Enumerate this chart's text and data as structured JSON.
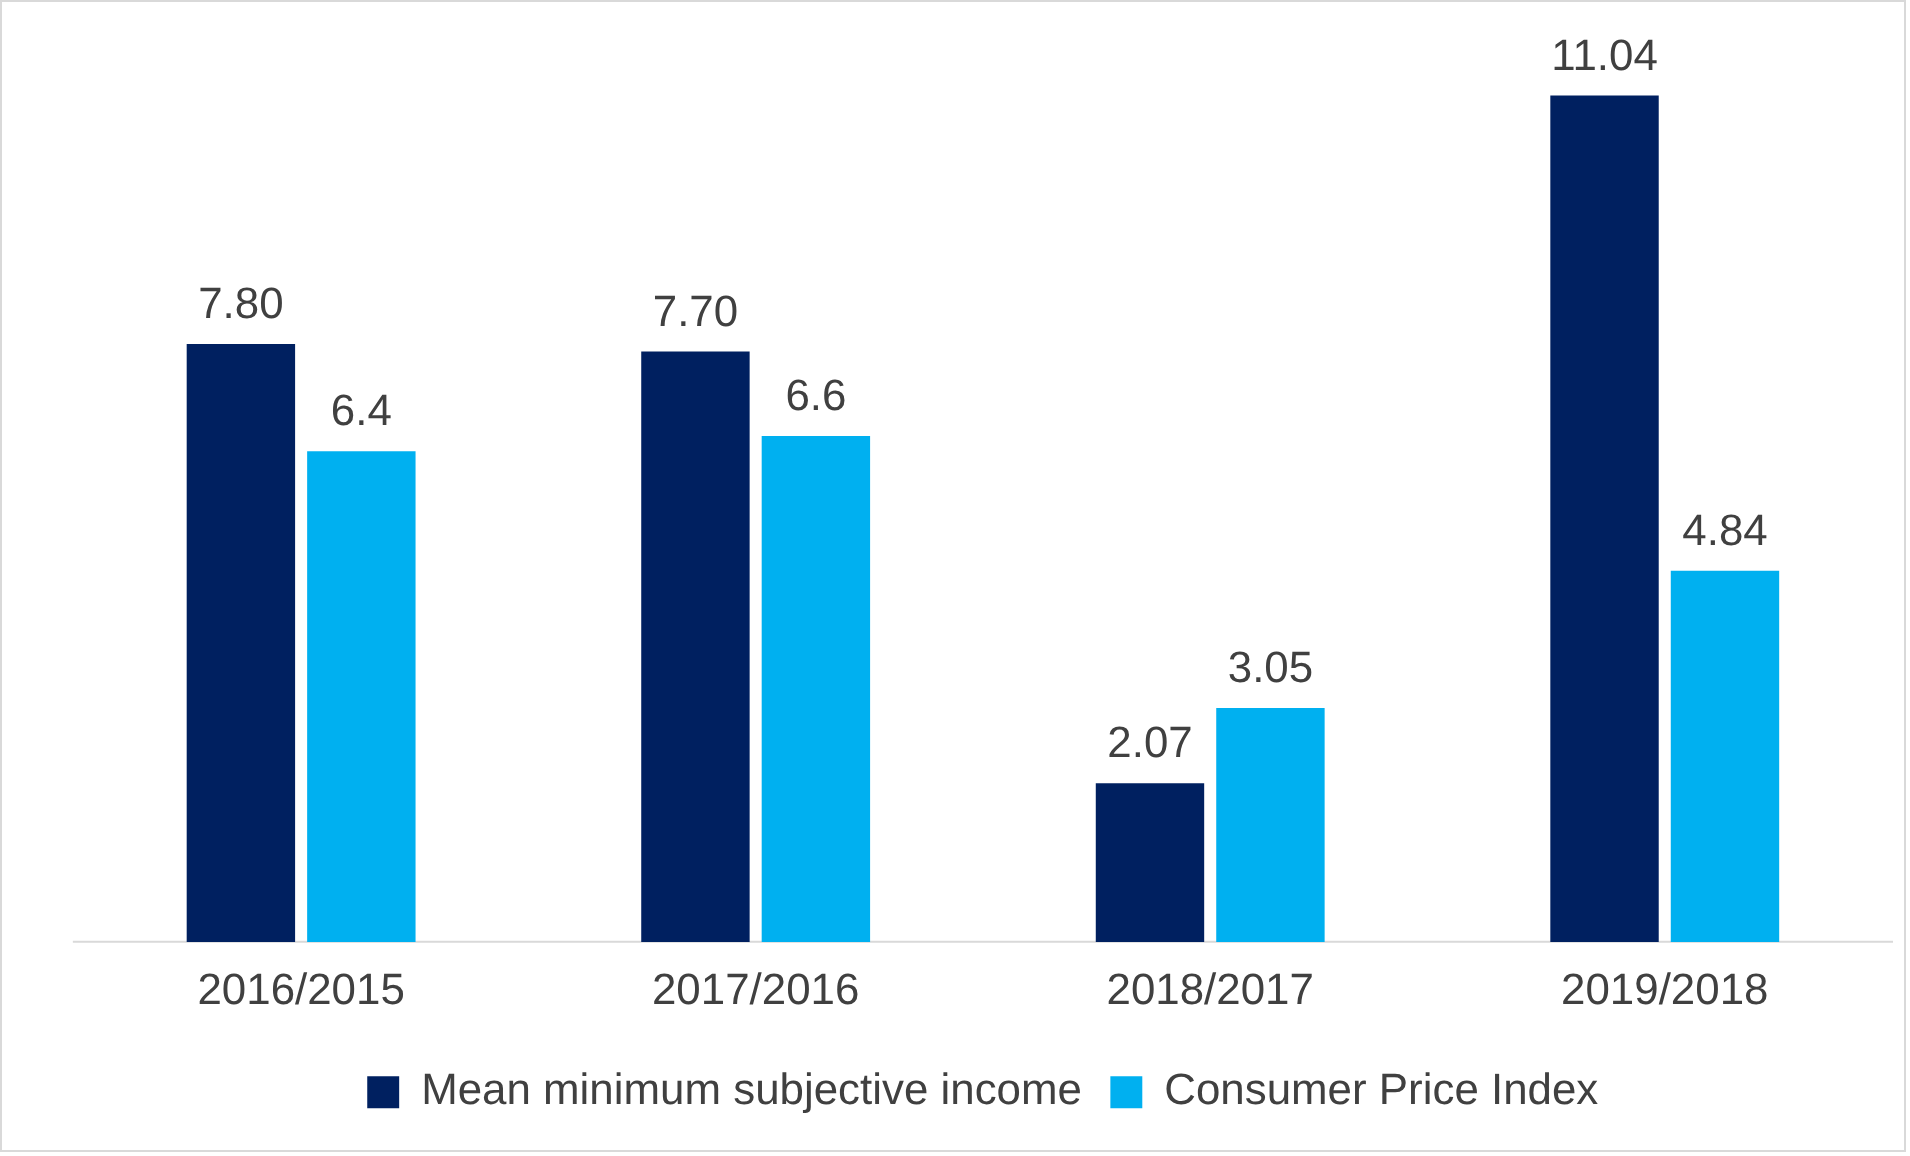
{
  "chart_data": {
    "type": "bar",
    "categories": [
      "2016/2015",
      "2017/2016",
      "2018/2017",
      "2019/2018"
    ],
    "series": [
      {
        "name": "Mean minimum subjective income",
        "color": "#002060",
        "values": [
          7.8,
          7.7,
          2.07,
          11.04
        ],
        "value_labels": [
          "7.80",
          "7.70",
          "2.07",
          "11.04"
        ]
      },
      {
        "name": "Consumer Price Index",
        "color": "#00b0f0",
        "values": [
          6.4,
          6.6,
          3.05,
          4.84
        ],
        "value_labels": [
          "6.4",
          "6.6",
          "3.05",
          "4.84"
        ]
      }
    ],
    "legend": "bottom",
    "grid": false,
    "tick_labels": "x"
  }
}
